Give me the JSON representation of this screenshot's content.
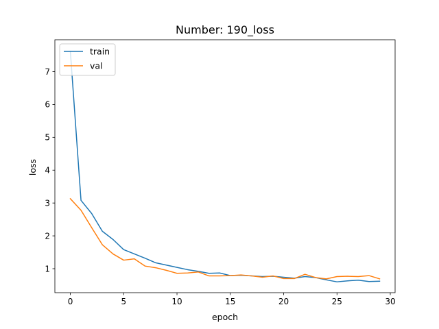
{
  "chart_data": {
    "type": "line",
    "title": "Number: 190_loss",
    "xlabel": "epoch",
    "ylabel": "loss",
    "xlim": [
      -1.45,
      30.45
    ],
    "ylim": [
      0.27,
      7.97
    ],
    "xticks": [
      0,
      5,
      10,
      15,
      20,
      25,
      30
    ],
    "yticks": [
      1,
      2,
      3,
      4,
      5,
      6,
      7
    ],
    "grid": false,
    "legend_position": "top-left",
    "x": [
      0,
      1,
      2,
      3,
      4,
      5,
      6,
      7,
      8,
      9,
      10,
      11,
      12,
      13,
      14,
      15,
      16,
      17,
      18,
      19,
      20,
      21,
      22,
      23,
      24,
      25,
      26,
      27,
      28,
      29
    ],
    "series": [
      {
        "name": "train",
        "color": "#1f77b4",
        "values": [
          7.62,
          3.08,
          2.68,
          2.14,
          1.89,
          1.58,
          1.45,
          1.32,
          1.18,
          1.11,
          1.04,
          0.97,
          0.92,
          0.86,
          0.87,
          0.79,
          0.8,
          0.78,
          0.76,
          0.77,
          0.74,
          0.71,
          0.76,
          0.73,
          0.66,
          0.6,
          0.63,
          0.65,
          0.61,
          0.62
        ]
      },
      {
        "name": "val",
        "color": "#ff7f0e",
        "values": [
          3.13,
          2.78,
          2.25,
          1.73,
          1.45,
          1.26,
          1.3,
          1.08,
          1.03,
          0.95,
          0.86,
          0.87,
          0.9,
          0.78,
          0.78,
          0.79,
          0.81,
          0.78,
          0.74,
          0.78,
          0.7,
          0.7,
          0.83,
          0.73,
          0.69,
          0.76,
          0.77,
          0.76,
          0.79,
          0.69
        ]
      }
    ]
  }
}
